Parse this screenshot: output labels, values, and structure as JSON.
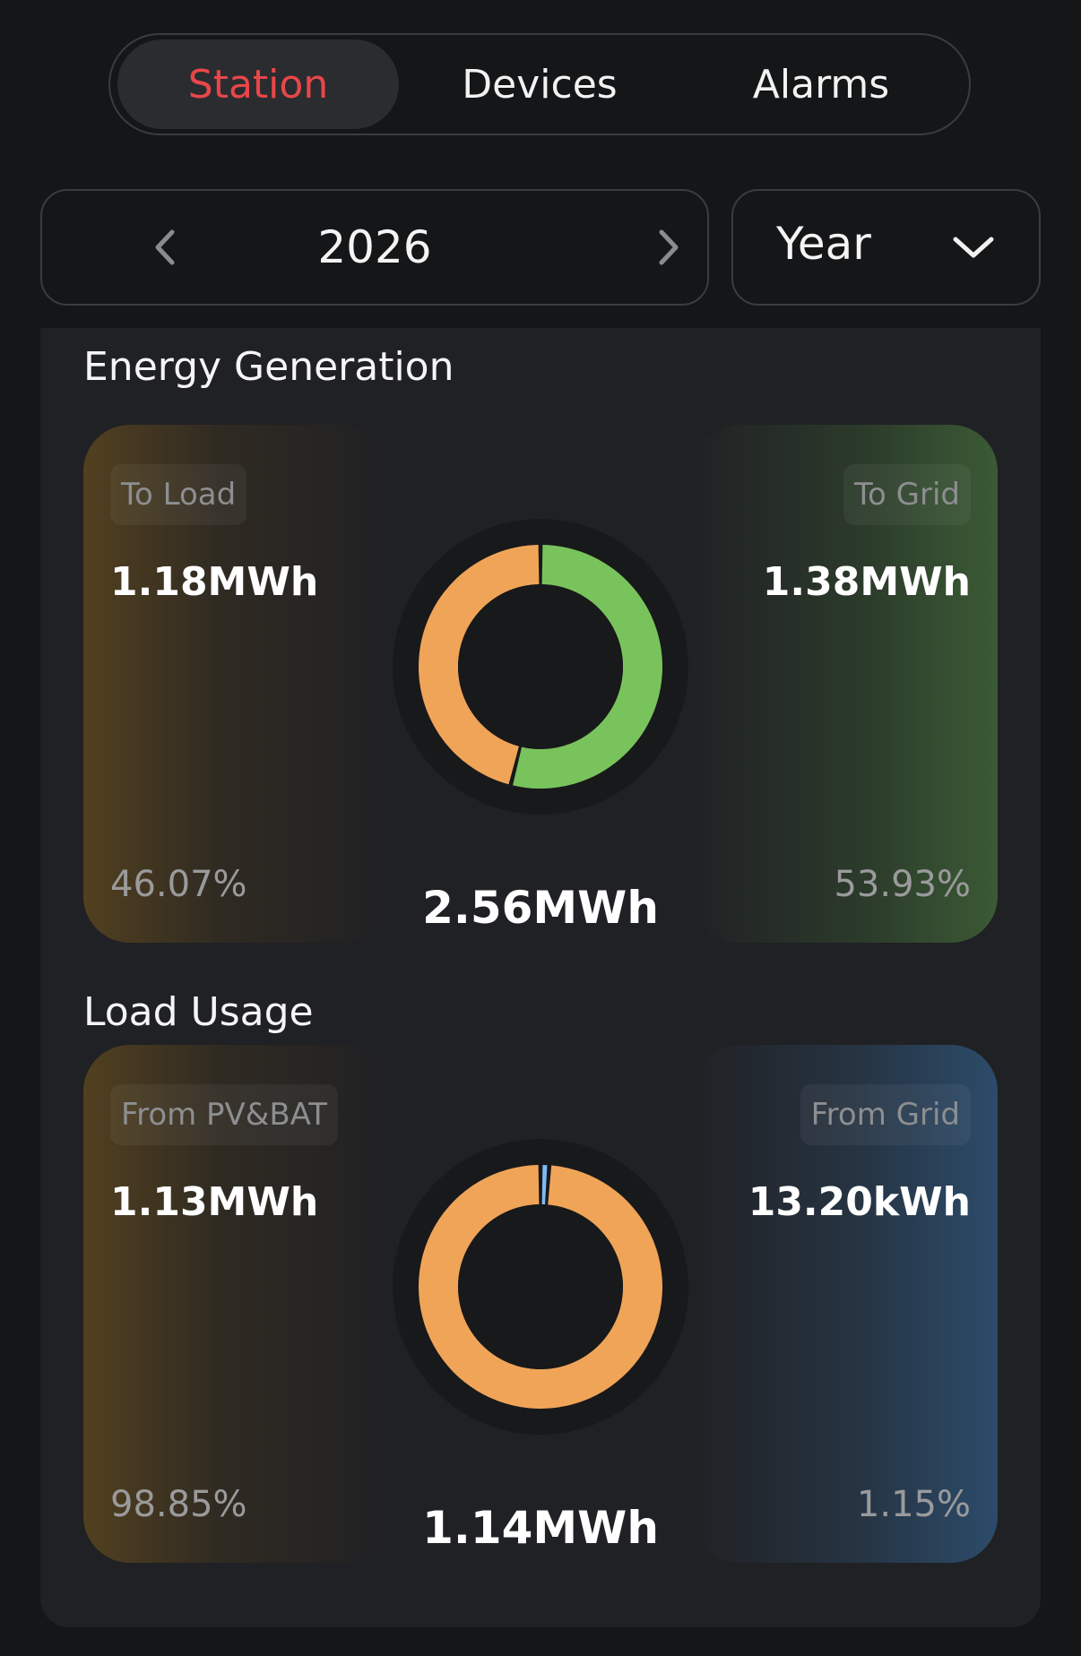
{
  "tabs": [
    {
      "label": "Station",
      "active": true
    },
    {
      "label": "Devices",
      "active": false
    },
    {
      "label": "Alarms",
      "active": false
    }
  ],
  "date_selector": {
    "value": "2026",
    "prev_icon": "chevron-left-icon",
    "next_icon": "chevron-right-icon"
  },
  "period_select": {
    "selected": "Year",
    "icon": "chevron-down-icon"
  },
  "energy_generation": {
    "title": "Energy Generation",
    "left": {
      "label": "To Load",
      "value": "1.18MWh",
      "percent": "46.07%"
    },
    "right": {
      "label": "To Grid",
      "value": "1.38MWh",
      "percent": "53.93%"
    },
    "total": "2.56MWh",
    "donut": {
      "left_fraction": 0.4607,
      "right_fraction": 0.5393,
      "left_color": "#f0a458",
      "right_color": "#79c35c"
    }
  },
  "load_usage": {
    "title": "Load Usage",
    "left": {
      "label": "From PV&BAT",
      "value": "1.13MWh",
      "percent": "98.85%"
    },
    "right": {
      "label": "From Grid",
      "value": "13.20kWh",
      "percent": "1.15%"
    },
    "total": "1.14MWh",
    "donut": {
      "left_fraction": 0.9885,
      "right_fraction": 0.0115,
      "left_color": "#f0a458",
      "right_color": "#7fb9f2"
    }
  },
  "colors": {
    "accent": "#e8474a",
    "background": "#151618",
    "card": "#202124"
  }
}
